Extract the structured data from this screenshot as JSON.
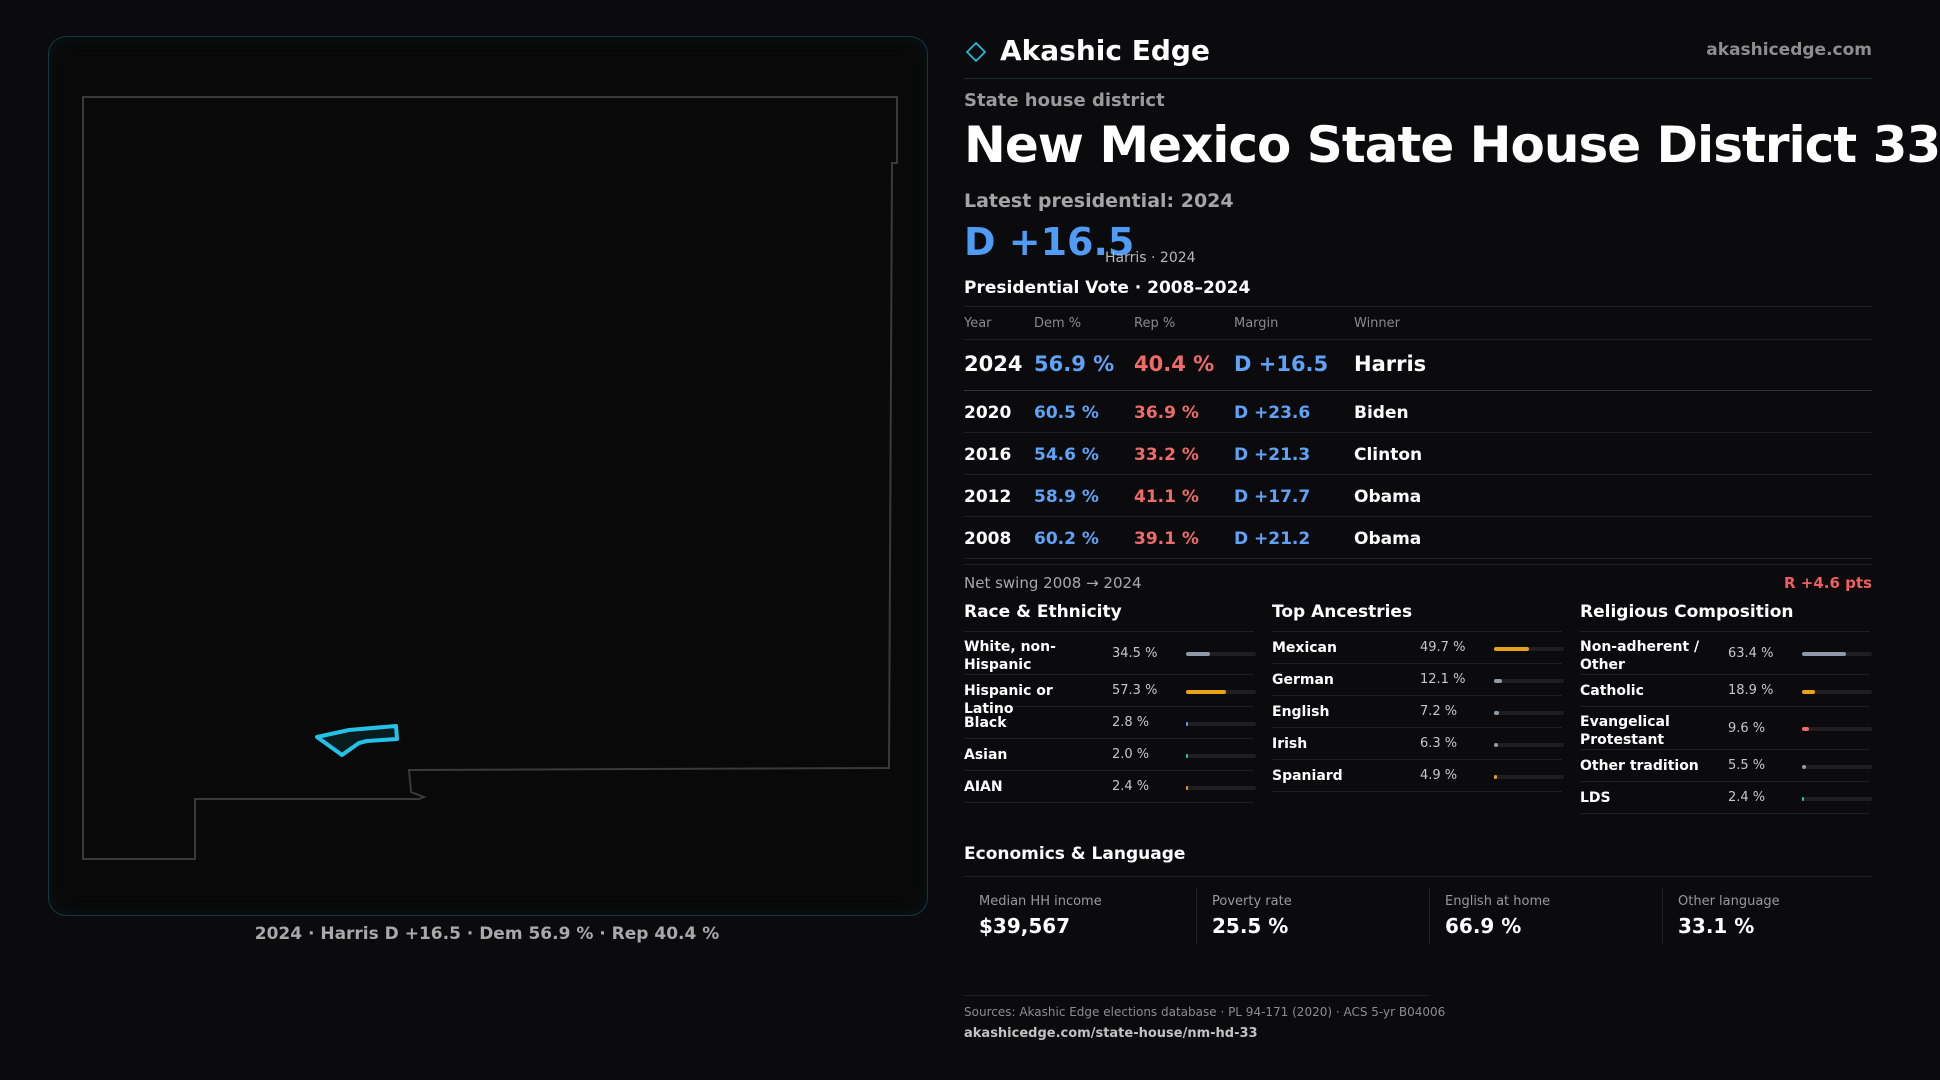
{
  "map": {
    "caption": "2024 · Harris D +16.5 · Dem 56.9 % · Rep 40.4 %",
    "highlight_color": "#22c3e6"
  },
  "brand": {
    "name": "Akashic Edge",
    "url": "akashicedge.com",
    "logo_icon": "diamond-outline"
  },
  "header": {
    "kicker": "State house district",
    "title": "New Mexico State House District 33",
    "latest_label": "Latest presidential: 2024",
    "margin": "D +16.5",
    "margin_sub": "Harris · 2024"
  },
  "presidential": {
    "title": "Presidential Vote · 2008–2024",
    "columns": [
      "Year",
      "Dem %",
      "Rep %",
      "Margin",
      "Winner"
    ],
    "rows": [
      {
        "year": "2024",
        "dem": "56.9 %",
        "rep": "40.4 %",
        "margin": "D +16.5",
        "winner": "Harris"
      },
      {
        "year": "2020",
        "dem": "60.5 %",
        "rep": "36.9 %",
        "margin": "D +23.6",
        "winner": "Biden"
      },
      {
        "year": "2016",
        "dem": "54.6 %",
        "rep": "33.2 %",
        "margin": "D +21.3",
        "winner": "Clinton"
      },
      {
        "year": "2012",
        "dem": "58.9 %",
        "rep": "41.1 %",
        "margin": "D +17.7",
        "winner": "Obama"
      },
      {
        "year": "2008",
        "dem": "60.2 %",
        "rep": "39.1 %",
        "margin": "D +21.2",
        "winner": "Obama"
      }
    ],
    "swing_label": "Net swing 2008 → 2024",
    "swing_value": "R +4.6 pts"
  },
  "race": {
    "title": "Race & Ethnicity",
    "rows": [
      {
        "label": "White, non-Hispanic",
        "value": "34.5 %",
        "share": 0.345,
        "color": "#8f9aab"
      },
      {
        "label": "Hispanic or Latino",
        "value": "57.3 %",
        "share": 0.573,
        "color": "#e6a317"
      },
      {
        "label": "Black",
        "value": "2.8 %",
        "share": 0.028,
        "color": "#7b8cff"
      },
      {
        "label": "Asian",
        "value": "2.0 %",
        "share": 0.02,
        "color": "#2ec4a6"
      },
      {
        "label": "AIAN",
        "value": "2.4 %",
        "share": 0.024,
        "color": "#e6a317"
      }
    ]
  },
  "ancestry": {
    "title": "Top Ancestries",
    "rows": [
      {
        "label": "Mexican",
        "value": "49.7 %",
        "share": 0.497,
        "color": "#e6a317"
      },
      {
        "label": "German",
        "value": "12.1 %",
        "share": 0.121,
        "color": "#8f9aab"
      },
      {
        "label": "English",
        "value": "7.2 %",
        "share": 0.072,
        "color": "#8f9aab"
      },
      {
        "label": "Irish",
        "value": "6.3 %",
        "share": 0.063,
        "color": "#8f9aab"
      },
      {
        "label": "Spaniard",
        "value": "4.9 %",
        "share": 0.049,
        "color": "#e6a317"
      }
    ]
  },
  "religion": {
    "title": "Religious Composition",
    "rows": [
      {
        "label": "Non-adherent / Other",
        "value": "63.4 %",
        "share": 0.634,
        "color": "#8f9aab"
      },
      {
        "label": "Catholic",
        "value": "18.9 %",
        "share": 0.189,
        "color": "#e6a317"
      },
      {
        "label": "Evangelical Protestant",
        "value": "9.6 %",
        "share": 0.096,
        "color": "#ef6b6b"
      },
      {
        "label": "Other tradition",
        "value": "5.5 %",
        "share": 0.055,
        "color": "#8f9aab"
      },
      {
        "label": "LDS",
        "value": "2.4 %",
        "share": 0.024,
        "color": "#2ec4a6"
      }
    ]
  },
  "economics": {
    "title": "Economics & Language",
    "stats": [
      {
        "label": "Median HH income",
        "value": "$39,567"
      },
      {
        "label": "Poverty rate",
        "value": "25.5 %"
      },
      {
        "label": "English at home",
        "value": "66.9 %"
      },
      {
        "label": "Other language",
        "value": "33.1 %"
      }
    ]
  },
  "footer": {
    "sources": "Sources: Akashic Edge elections database · PL 94-171 (2020) · ACS 5-yr B04006",
    "url": "akashicedge.com/state-house/nm-hd-33"
  }
}
